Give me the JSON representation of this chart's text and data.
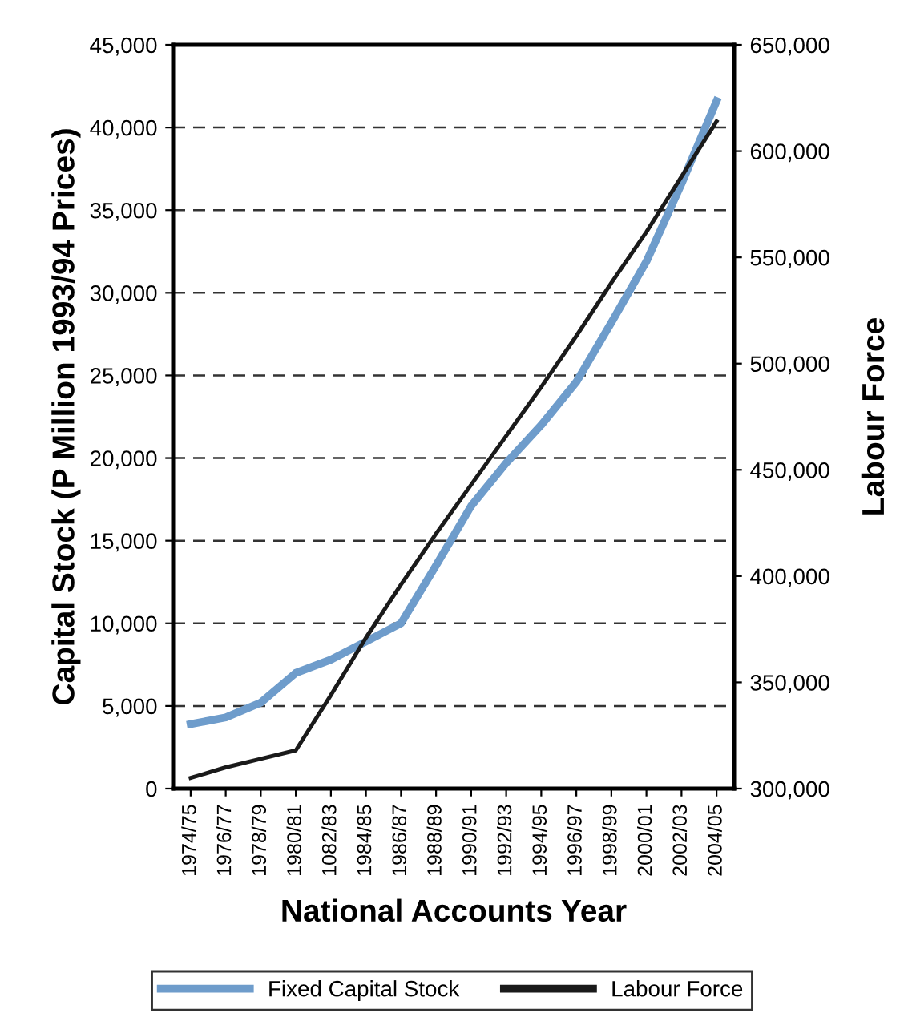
{
  "chart_data": {
    "type": "line",
    "categories": [
      "1974/75",
      "1976/77",
      "1978/79",
      "1980/81",
      "1082/83",
      "1984/85",
      "1986/87",
      "1988/89",
      "1990/91",
      "1992/93",
      "1994/95",
      "1996/97",
      "1998/99",
      "2000/01",
      "2002/03",
      "2004/05"
    ],
    "series": [
      {
        "name": "Fixed Capital Stock",
        "color": "#6e9ccb",
        "values": [
          3900,
          4300,
          5200,
          7000,
          7800,
          8900,
          10000,
          13500,
          17100,
          19700,
          22000,
          24600,
          28200,
          31900,
          36600,
          41600
        ]
      },
      {
        "name": "Labour Force",
        "color": "#1a1a1a",
        "axis": "y2",
        "values": [
          305000,
          310000,
          314000,
          318000,
          344000,
          371000,
          396000,
          420000,
          443000,
          466000,
          489000,
          513000,
          538000,
          562000,
          588000,
          614000
        ]
      }
    ],
    "xlabel": "National Accounts Year",
    "ylabel": "Capital Stock (P Million 1993/94 Prices)",
    "y2label": "Labour Force",
    "ylim": [
      0,
      45000
    ],
    "yticks": [
      {
        "value": 0,
        "label": "0"
      },
      {
        "value": 5000,
        "label": "5,000"
      },
      {
        "value": 10000,
        "label": "10,000"
      },
      {
        "value": 15000,
        "label": "15,000"
      },
      {
        "value": 20000,
        "label": "20,000"
      },
      {
        "value": 25000,
        "label": "25,000"
      },
      {
        "value": 30000,
        "label": "30,000"
      },
      {
        "value": 35000,
        "label": "35,000"
      },
      {
        "value": 40000,
        "label": "40,000"
      },
      {
        "value": 45000,
        "label": "45,000"
      }
    ],
    "y2lim": [
      300000,
      650000
    ],
    "y2ticks": [
      {
        "value": 300000,
        "label": "300,000"
      },
      {
        "value": 350000,
        "label": "350,000"
      },
      {
        "value": 400000,
        "label": "400,000"
      },
      {
        "value": 450000,
        "label": "450,000"
      },
      {
        "value": 500000,
        "label": "500,000"
      },
      {
        "value": 550000,
        "label": "550,000"
      },
      {
        "value": 600000,
        "label": "600,000"
      },
      {
        "value": 650000,
        "label": "650,000"
      }
    ],
    "grid": "y",
    "legend": "bottom",
    "line_style": "solid",
    "marker": "none"
  }
}
